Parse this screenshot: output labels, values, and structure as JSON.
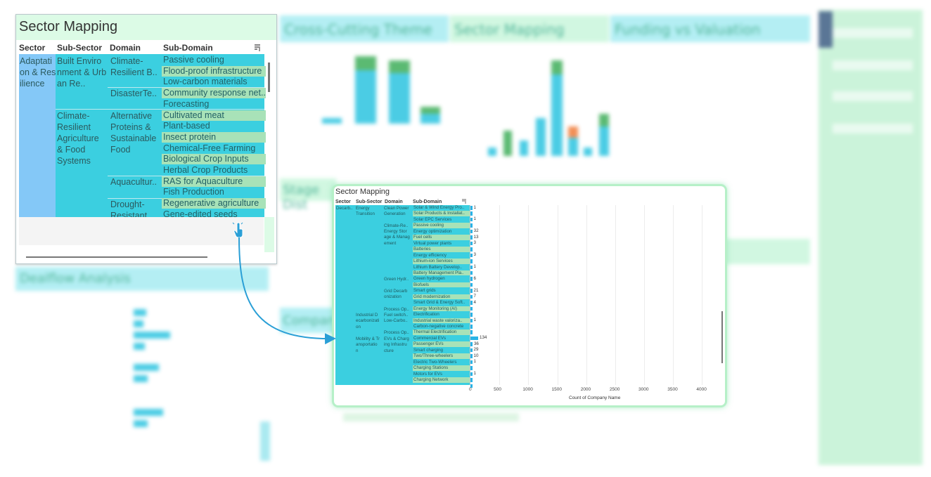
{
  "background": {
    "panel_titles": [
      "Cross-Cutting Theme",
      "Sector Mapping",
      "Funding vs Valuation",
      "Stage Dist",
      "Dealflow Analysis",
      "Company"
    ],
    "colors": {
      "teal_bar": "#2cc4e0",
      "green_bar": "#3fae5a",
      "orange_bar": "#f07c3a",
      "panel_header": "#9eeaf0",
      "sidebar": "#cdf5dc"
    }
  },
  "card1": {
    "title": "Sector Mapping",
    "headers": {
      "sector": "Sector",
      "sub_sector": "Sub-Sector",
      "domain": "Domain",
      "sub_domain": "Sub-Domain"
    },
    "sector": "Adaptati\non & Res\nilience",
    "sub_sectors": [
      "Built Enviro\nnment & Urb\nan Re..",
      "Climate-\nResilient\nAgriculture\n& Food\nSystems"
    ],
    "domains": [
      "Climate-\nResilient B..",
      "DisasterTe..",
      "Alternative\nProteins &\nSustainable\nFood",
      "Aquacultur..",
      "Drought-\nResistant C.."
    ],
    "sub_domains": [
      "Passive cooling",
      "Flood-proof infrastructure",
      "Low-carbon materials",
      "Community response net..",
      "Forecasting",
      "Cultivated meat",
      "Plant-based",
      "Insect protein",
      "Chemical-Free Farming",
      "Biological Crop Inputs",
      "Herbal Crop Products",
      "RAS for Aquaculture",
      "Fish Production",
      "Regenerative agriculture",
      "Gene-edited seeds"
    ],
    "colors": {
      "sector": "#84c8f7",
      "cell": "#3bcfe0",
      "alt_row": "#a8e2b8",
      "title_bg": "#dcfbe6"
    }
  },
  "card2": {
    "title": "Sector Mapping",
    "headers": {
      "sector": "Sector",
      "sub_sector": "Sub-Sector",
      "domain": "Domain",
      "sub_domain": "Sub-Domain"
    },
    "sector": "Decarb..",
    "sub_sectors": [
      "Energy\nTransition",
      "Industrial D\necarbonizati\non",
      "Mobility & Tr\nansportatio\nn"
    ],
    "domains": [
      "Clean Power\nGeneration",
      "Climate-Re..",
      "Energy Stor\nage & Manag\nement",
      "Green Hydr..",
      "Grid Decarb\nonization",
      "Process Op..",
      "Fuel switch..",
      "Low-Carbo..",
      "Process Op..",
      "EVs & Charg\ning Infrastru\ncture"
    ],
    "rows": [
      {
        "label": "Solar & Wind Energy Pro..",
        "value": 1
      },
      {
        "label": "Solar Products & Installat..",
        "value": 0
      },
      {
        "label": "Solar EPC Services",
        "value": 1
      },
      {
        "label": "Passive cooling",
        "value": 0
      },
      {
        "label": "Energy optimization",
        "value": 32
      },
      {
        "label": "Fuel cells",
        "value": 13
      },
      {
        "label": "Virtual power plants",
        "value": 3
      },
      {
        "label": "Batteries",
        "value": 0
      },
      {
        "label": "Energy efficiency",
        "value": 3
      },
      {
        "label": "Lithium-ion Services",
        "value": 0
      },
      {
        "label": "Lithium Battery Develop..",
        "value": 1
      },
      {
        "label": "Battery Management Pla..",
        "value": 0
      },
      {
        "label": "Green hydrogen",
        "value": 6
      },
      {
        "label": "Biofuels",
        "value": 0
      },
      {
        "label": "Smart grids",
        "value": 21
      },
      {
        "label": "Grid modernization",
        "value": 7
      },
      {
        "label": "Smart Grid & Energy Soft..",
        "value": 4
      },
      {
        "label": "Energy Monitoring (AI)",
        "value": 0
      },
      {
        "label": "Electrification",
        "value": 0
      },
      {
        "label": "Industrial waste valoriza..",
        "value": 1
      },
      {
        "label": "Carbon-negative concrete",
        "value": 0
      },
      {
        "label": "Thermal Electrification",
        "value": 0
      },
      {
        "label": "Commercial EVs",
        "value": 134
      },
      {
        "label": "Passenger EVs",
        "value": 36
      },
      {
        "label": "Smart charging",
        "value": 29
      },
      {
        "label": "Two/Three-wheelers",
        "value": 10
      },
      {
        "label": "Electric Two-Wheelers",
        "value": 1
      },
      {
        "label": "Charging Stations",
        "value": 0
      },
      {
        "label": "Motors for EVs",
        "value": 1
      },
      {
        "label": "Charging Network",
        "value": 0
      },
      {
        "label": "",
        "value": 0
      }
    ],
    "value_labels": [
      "1",
      "",
      "1",
      "",
      "32",
      "13",
      "3",
      "",
      "3",
      "",
      "1",
      "",
      "6",
      "",
      "21",
      "7",
      "4",
      "",
      "",
      "1",
      "",
      "",
      "134",
      "36",
      "29",
      "10",
      "1",
      "",
      "1",
      "",
      ""
    ],
    "x_axis": {
      "label": "Count of Company Name",
      "ticks": [
        "0",
        "500",
        "1000",
        "1500",
        "2000",
        "2500",
        "3000",
        "3500",
        "4000"
      ],
      "range": [
        0,
        4250
      ]
    },
    "colors": {
      "bar": "#29b3e6",
      "border": "#b6f0c8"
    }
  }
}
